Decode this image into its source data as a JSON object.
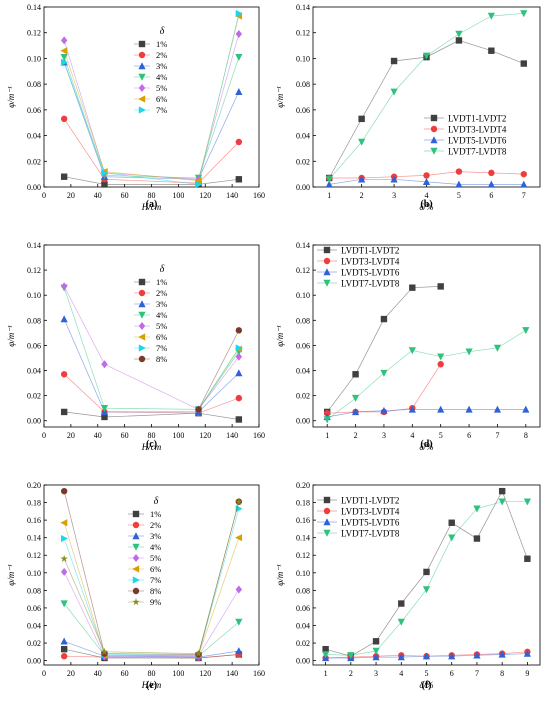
{
  "panels_meta": {
    "letters": [
      "(a)",
      "(b)",
      "(c)",
      "(d)",
      "(e)",
      "(f)"
    ]
  },
  "chart_data": [
    {
      "id": "a",
      "type": "line",
      "caption": "(a)",
      "xlabel": "H/cm",
      "ylabel": "φ/m⁻¹",
      "legend_title": "δ",
      "xlim": [
        0,
        160
      ],
      "ylim": [
        0,
        0.14
      ],
      "xticks": [
        0,
        20,
        40,
        60,
        80,
        100,
        120,
        140,
        160
      ],
      "yticks": [
        0,
        0.02,
        0.04,
        0.06,
        0.08,
        0.1,
        0.12,
        0.14
      ],
      "ytick_labels": [
        "0.00",
        "0.02",
        "0.04",
        "0.06",
        "0.08",
        "0.10",
        "0.12",
        "0.14"
      ],
      "x": [
        15,
        45,
        115,
        145
      ],
      "series": [
        {
          "name": "1%",
          "values": [
            0.008,
            0.002,
            0.002,
            0.006
          ],
          "color": "#404040",
          "marker": "square"
        },
        {
          "name": "2%",
          "values": [
            0.053,
            0.006,
            0.003,
            0.035
          ],
          "color": "#f03c3c",
          "marker": "circle"
        },
        {
          "name": "3%",
          "values": [
            0.097,
            0.008,
            0.006,
            0.074
          ],
          "color": "#2f62d6",
          "marker": "triangle-up"
        },
        {
          "name": "4%",
          "values": [
            0.101,
            0.009,
            0.007,
            0.101
          ],
          "color": "#2ec27e",
          "marker": "triangle-down"
        },
        {
          "name": "5%",
          "values": [
            0.114,
            0.011,
            0.006,
            0.119
          ],
          "color": "#c06ae8",
          "marker": "diamond"
        },
        {
          "name": "6%",
          "values": [
            0.106,
            0.012,
            0.005,
            0.133
          ],
          "color": "#d9a000",
          "marker": "triangle-left"
        },
        {
          "name": "7%",
          "values": [
            0.097,
            0.011,
            0.002,
            0.135
          ],
          "color": "#1ad8e8",
          "marker": "triangle-right"
        }
      ]
    },
    {
      "id": "b",
      "type": "line",
      "caption": "(b)",
      "xlabel": "δ/%",
      "ylabel": "φ/m⁻¹",
      "xlim": [
        0.5,
        7.5
      ],
      "ylim": [
        0,
        0.14
      ],
      "xticks": [
        1,
        2,
        3,
        4,
        5,
        6,
        7
      ],
      "yticks": [
        0,
        0.02,
        0.04,
        0.06,
        0.08,
        0.1,
        0.12,
        0.14
      ],
      "ytick_labels": [
        "0.00",
        "0.02",
        "0.04",
        "0.06",
        "0.08",
        "0.10",
        "0.12",
        "0.14"
      ],
      "x": [
        1,
        2,
        3,
        4,
        5,
        6,
        7
      ],
      "series": [
        {
          "name": "LVDT1-LVDT2",
          "values": [
            0.007,
            0.053,
            0.098,
            0.101,
            0.114,
            0.106,
            0.096
          ],
          "color": "#404040",
          "marker": "square"
        },
        {
          "name": "LVDT3-LVDT4",
          "values": [
            0.007,
            0.007,
            0.008,
            0.009,
            0.012,
            0.011,
            0.01
          ],
          "color": "#f03c3c",
          "marker": "circle"
        },
        {
          "name": "LVDT5-LVDT6",
          "values": [
            0.002,
            0.006,
            0.006,
            0.004,
            0.002,
            0.002,
            0.002
          ],
          "color": "#2f62d6",
          "marker": "triangle-up"
        },
        {
          "name": "LVDT7-LVDT8",
          "values": [
            0.006,
            0.035,
            0.074,
            0.102,
            0.119,
            0.133,
            0.135
          ],
          "color": "#2ec27e",
          "marker": "triangle-down"
        }
      ]
    },
    {
      "id": "c",
      "type": "line",
      "caption": "(c)",
      "xlabel": "H/cm",
      "ylabel": "φ/m⁻¹",
      "legend_title": "δ",
      "xlim": [
        0,
        160
      ],
      "ylim": [
        -0.005,
        0.14
      ],
      "xticks": [
        0,
        20,
        40,
        60,
        80,
        100,
        120,
        140,
        160
      ],
      "yticks": [
        0,
        0.02,
        0.04,
        0.06,
        0.08,
        0.1,
        0.12,
        0.14
      ],
      "ytick_labels": [
        "0.00",
        "0.02",
        "0.04",
        "0.06",
        "0.08",
        "0.10",
        "0.12",
        "0.14"
      ],
      "x": [
        15,
        45,
        115,
        145
      ],
      "series": [
        {
          "name": "1%",
          "values": [
            0.007,
            0.003,
            0.006,
            0.001
          ],
          "color": "#404040",
          "marker": "square"
        },
        {
          "name": "2%",
          "values": [
            0.037,
            0.007,
            0.006,
            0.018
          ],
          "color": "#f03c3c",
          "marker": "circle"
        },
        {
          "name": "3%",
          "values": [
            0.081,
            0.007,
            0.007,
            0.038
          ],
          "color": "#2f62d6",
          "marker": "triangle-up"
        },
        {
          "name": "4%",
          "values": [
            0.106,
            0.01,
            0.009,
            0.055
          ],
          "color": "#2ec27e",
          "marker": "triangle-down"
        },
        {
          "name": "5%",
          "values": [
            0.107,
            0.045,
            0.009,
            0.051
          ],
          "color": "#c06ae8",
          "marker": "diamond"
        },
        {
          "name": "6%",
          "values": [
            null,
            null,
            0.009,
            0.057
          ],
          "color": "#d9a000",
          "marker": "triangle-left"
        },
        {
          "name": "7%",
          "values": [
            null,
            null,
            0.009,
            0.058
          ],
          "color": "#1ad8e8",
          "marker": "triangle-right"
        },
        {
          "name": "8%",
          "values": [
            null,
            null,
            0.009,
            0.072
          ],
          "color": "#7a3a2a",
          "marker": "circle"
        }
      ]
    },
    {
      "id": "d",
      "type": "line",
      "caption": "(d)",
      "xlabel": "δ/%",
      "ylabel": "φ/m⁻¹",
      "xlim": [
        0.5,
        8.5
      ],
      "ylim": [
        -0.005,
        0.14
      ],
      "xticks": [
        1,
        2,
        3,
        4,
        5,
        6,
        7,
        8
      ],
      "yticks": [
        0,
        0.02,
        0.04,
        0.06,
        0.08,
        0.1,
        0.12,
        0.14
      ],
      "ytick_labels": [
        "0.00",
        "0.02",
        "0.04",
        "0.06",
        "0.08",
        "0.10",
        "0.12",
        "0.14"
      ],
      "x": [
        1,
        2,
        3,
        4,
        5,
        6,
        7,
        8
      ],
      "series": [
        {
          "name": "LVDT1-LVDT2",
          "values": [
            0.007,
            0.037,
            0.081,
            0.106,
            0.107,
            null,
            null,
            null
          ],
          "color": "#404040",
          "marker": "square"
        },
        {
          "name": "LVDT3-LVDT4",
          "values": [
            0.006,
            0.007,
            0.007,
            0.01,
            0.045,
            null,
            null,
            null
          ],
          "color": "#f03c3c",
          "marker": "circle"
        },
        {
          "name": "LVDT5-LVDT6",
          "values": [
            0.003,
            0.007,
            0.008,
            0.009,
            0.009,
            0.009,
            0.009,
            0.009
          ],
          "color": "#2f62d6",
          "marker": "triangle-up"
        },
        {
          "name": "LVDT7-LVDT8",
          "values": [
            0.001,
            0.018,
            0.038,
            0.056,
            0.051,
            0.055,
            0.058,
            0.072
          ],
          "color": "#2ec27e",
          "marker": "triangle-down"
        }
      ]
    },
    {
      "id": "e",
      "type": "line",
      "caption": "(e)",
      "xlabel": "H/cm",
      "ylabel": "φ/m⁻¹",
      "legend_title": "δ",
      "xlim": [
        0,
        160
      ],
      "ylim": [
        -0.005,
        0.2
      ],
      "xticks": [
        0,
        20,
        40,
        60,
        80,
        100,
        120,
        140,
        160
      ],
      "yticks": [
        0,
        0.02,
        0.04,
        0.06,
        0.08,
        0.1,
        0.12,
        0.14,
        0.16,
        0.18,
        0.2
      ],
      "ytick_labels": [
        "0.00",
        "0.02",
        "0.04",
        "0.06",
        "0.08",
        "0.10",
        "0.12",
        "0.14",
        "0.16",
        "0.18",
        "0.20"
      ],
      "x": [
        15,
        45,
        115,
        145
      ],
      "series": [
        {
          "name": "1%",
          "values": [
            0.013,
            0.003,
            0.003,
            0.007
          ],
          "color": "#404040",
          "marker": "square"
        },
        {
          "name": "2%",
          "values": [
            0.005,
            0.004,
            0.003,
            0.007
          ],
          "color": "#f03c3c",
          "marker": "circle"
        },
        {
          "name": "3%",
          "values": [
            0.022,
            0.005,
            0.004,
            0.011
          ],
          "color": "#2f62d6",
          "marker": "triangle-up"
        },
        {
          "name": "4%",
          "values": [
            0.065,
            0.006,
            0.005,
            0.044
          ],
          "color": "#2ec27e",
          "marker": "triangle-down"
        },
        {
          "name": "5%",
          "values": [
            0.101,
            0.005,
            0.005,
            0.081
          ],
          "color": "#c06ae8",
          "marker": "diamond"
        },
        {
          "name": "6%",
          "values": [
            0.157,
            0.006,
            0.006,
            0.14
          ],
          "color": "#d9a000",
          "marker": "triangle-left"
        },
        {
          "name": "7%",
          "values": [
            0.139,
            0.007,
            0.006,
            0.173
          ],
          "color": "#1ad8e8",
          "marker": "triangle-right"
        },
        {
          "name": "8%",
          "values": [
            0.193,
            0.008,
            0.007,
            0.181
          ],
          "color": "#7a3a2a",
          "marker": "circle"
        },
        {
          "name": "9%",
          "values": [
            0.116,
            0.01,
            0.008,
            0.181
          ],
          "color": "#8a8a1a",
          "marker": "star"
        }
      ]
    },
    {
      "id": "f",
      "type": "line",
      "caption": "(f)",
      "xlabel": "δ/%",
      "ylabel": "φ/m⁻¹",
      "xlim": [
        0.5,
        9.5
      ],
      "ylim": [
        -0.005,
        0.2
      ],
      "xticks": [
        1,
        2,
        3,
        4,
        5,
        6,
        7,
        8,
        9
      ],
      "yticks": [
        0,
        0.02,
        0.04,
        0.06,
        0.08,
        0.1,
        0.12,
        0.14,
        0.16,
        0.18,
        0.2
      ],
      "ytick_labels": [
        "0.00",
        "0.02",
        "0.04",
        "0.06",
        "0.08",
        "0.10",
        "0.12",
        "0.14",
        "0.16",
        "0.18",
        "0.20"
      ],
      "x": [
        1,
        2,
        3,
        4,
        5,
        6,
        7,
        8,
        9
      ],
      "series": [
        {
          "name": "LVDT1-LVDT2",
          "values": [
            0.013,
            0.005,
            0.022,
            0.065,
            0.101,
            0.157,
            0.139,
            0.193,
            0.116
          ],
          "color": "#404040",
          "marker": "square"
        },
        {
          "name": "LVDT3-LVDT4",
          "values": [
            0.003,
            0.004,
            0.005,
            0.006,
            0.005,
            0.006,
            0.007,
            0.008,
            0.01
          ],
          "color": "#f03c3c",
          "marker": "circle"
        },
        {
          "name": "LVDT5-LVDT6",
          "values": [
            0.003,
            0.003,
            0.004,
            0.004,
            0.005,
            0.005,
            0.006,
            0.007,
            0.008
          ],
          "color": "#2f62d6",
          "marker": "triangle-up"
        },
        {
          "name": "LVDT7-LVDT8",
          "values": [
            0.007,
            0.006,
            0.011,
            0.044,
            0.081,
            0.14,
            0.173,
            0.181,
            0.181
          ],
          "color": "#2ec27e",
          "marker": "triangle-down"
        }
      ]
    }
  ]
}
